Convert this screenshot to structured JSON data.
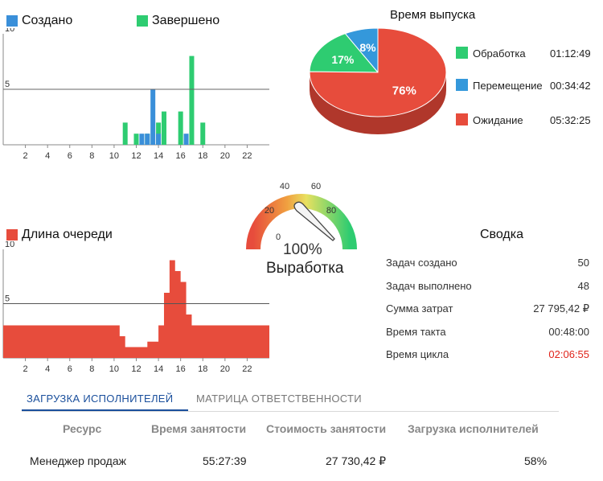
{
  "colors": {
    "created": "#3a8fd9",
    "finished": "#2ecc71",
    "queue": "#e74c3c",
    "processing": "#2ecc71",
    "moving": "#3498db",
    "waiting": "#e74c3c",
    "cycle_time": "#e0241b",
    "active_tab": "#1a4f9c"
  },
  "top_chart": {
    "legend": [
      {
        "label": "Создано",
        "color": "#3a8fd9"
      },
      {
        "label": "Завершено",
        "color": "#2ecc71"
      }
    ]
  },
  "queue_chart": {
    "legend": {
      "label": "Длина очереди",
      "color": "#e74c3c"
    }
  },
  "pie": {
    "title": "Время выпуска",
    "items": [
      {
        "label": "Обработка",
        "time": "01:12:49",
        "percent": "17%"
      },
      {
        "label": "Перемещение",
        "time": "00:34:42",
        "percent": "8%"
      },
      {
        "label": "Ожидание",
        "time": "05:32:25",
        "percent": "76%"
      }
    ]
  },
  "gauge": {
    "ticks": [
      "0",
      "20",
      "40",
      "60",
      "80",
      "100"
    ],
    "value_text": "100%",
    "label": "Выработка"
  },
  "summary": {
    "title": "Сводка",
    "rows": [
      {
        "label": "Задач создано",
        "value": "50"
      },
      {
        "label": "Задач выполнено",
        "value": "48"
      },
      {
        "label": "Сумма затрат",
        "value": "27 795,42 ₽"
      },
      {
        "label": "Время такта",
        "value": "00:48:00"
      },
      {
        "label": "Время цикла",
        "value": "02:06:55"
      }
    ]
  },
  "tabs": [
    {
      "label": "ЗАГРУЗКА ИСПОЛНИТЕЛЕЙ",
      "active": true
    },
    {
      "label": "МАТРИЦА ОТВЕТСТВЕННОСТИ",
      "active": false
    }
  ],
  "table": {
    "columns": [
      "Ресурс",
      "Время занятости",
      "Стоимость занятости",
      "Загрузка исполнителей"
    ],
    "rows": [
      [
        "Менеджер продаж",
        "55:27:39",
        "27 730,42 ₽",
        "58%"
      ]
    ]
  },
  "chart_data": [
    {
      "type": "bar",
      "xlim": [
        0,
        24
      ],
      "ylim": [
        0,
        10
      ],
      "x_ticks": [
        2,
        4,
        6,
        8,
        10,
        12,
        14,
        16,
        18,
        20,
        22
      ],
      "y_ticks": [
        5,
        10
      ],
      "reference_line": 5,
      "series": [
        {
          "name": "Создано",
          "x": [
            12.5,
            13,
            13.5,
            14,
            16.5
          ],
          "values": [
            1,
            1,
            5,
            1,
            1
          ]
        },
        {
          "name": "Завершено",
          "x": [
            11,
            12,
            13,
            14,
            14.5,
            16,
            17,
            18
          ],
          "values": [
            2,
            1,
            1,
            2,
            3,
            3,
            8,
            2
          ]
        }
      ]
    },
    {
      "type": "area",
      "xlim": [
        0,
        24
      ],
      "ylim": [
        0,
        10
      ],
      "x_ticks": [
        2,
        4,
        6,
        8,
        10,
        12,
        14,
        16,
        18,
        20,
        22
      ],
      "y_ticks": [
        5,
        10
      ],
      "reference_line": 5,
      "series": [
        {
          "name": "Длина очереди",
          "x": [
            0,
            10,
            10.5,
            11,
            12,
            12.5,
            13,
            14,
            14.5,
            15,
            15.5,
            16,
            16.5,
            17,
            18,
            24
          ],
          "values": [
            3,
            3,
            2,
            1,
            1,
            1,
            1.5,
            3,
            6,
            9,
            8,
            7,
            4,
            3,
            3,
            3
          ]
        }
      ]
    },
    {
      "type": "pie",
      "title": "Время выпуска",
      "categories": [
        "Обработка",
        "Перемещение",
        "Ожидание"
      ],
      "values": [
        17,
        8,
        76
      ]
    }
  ]
}
